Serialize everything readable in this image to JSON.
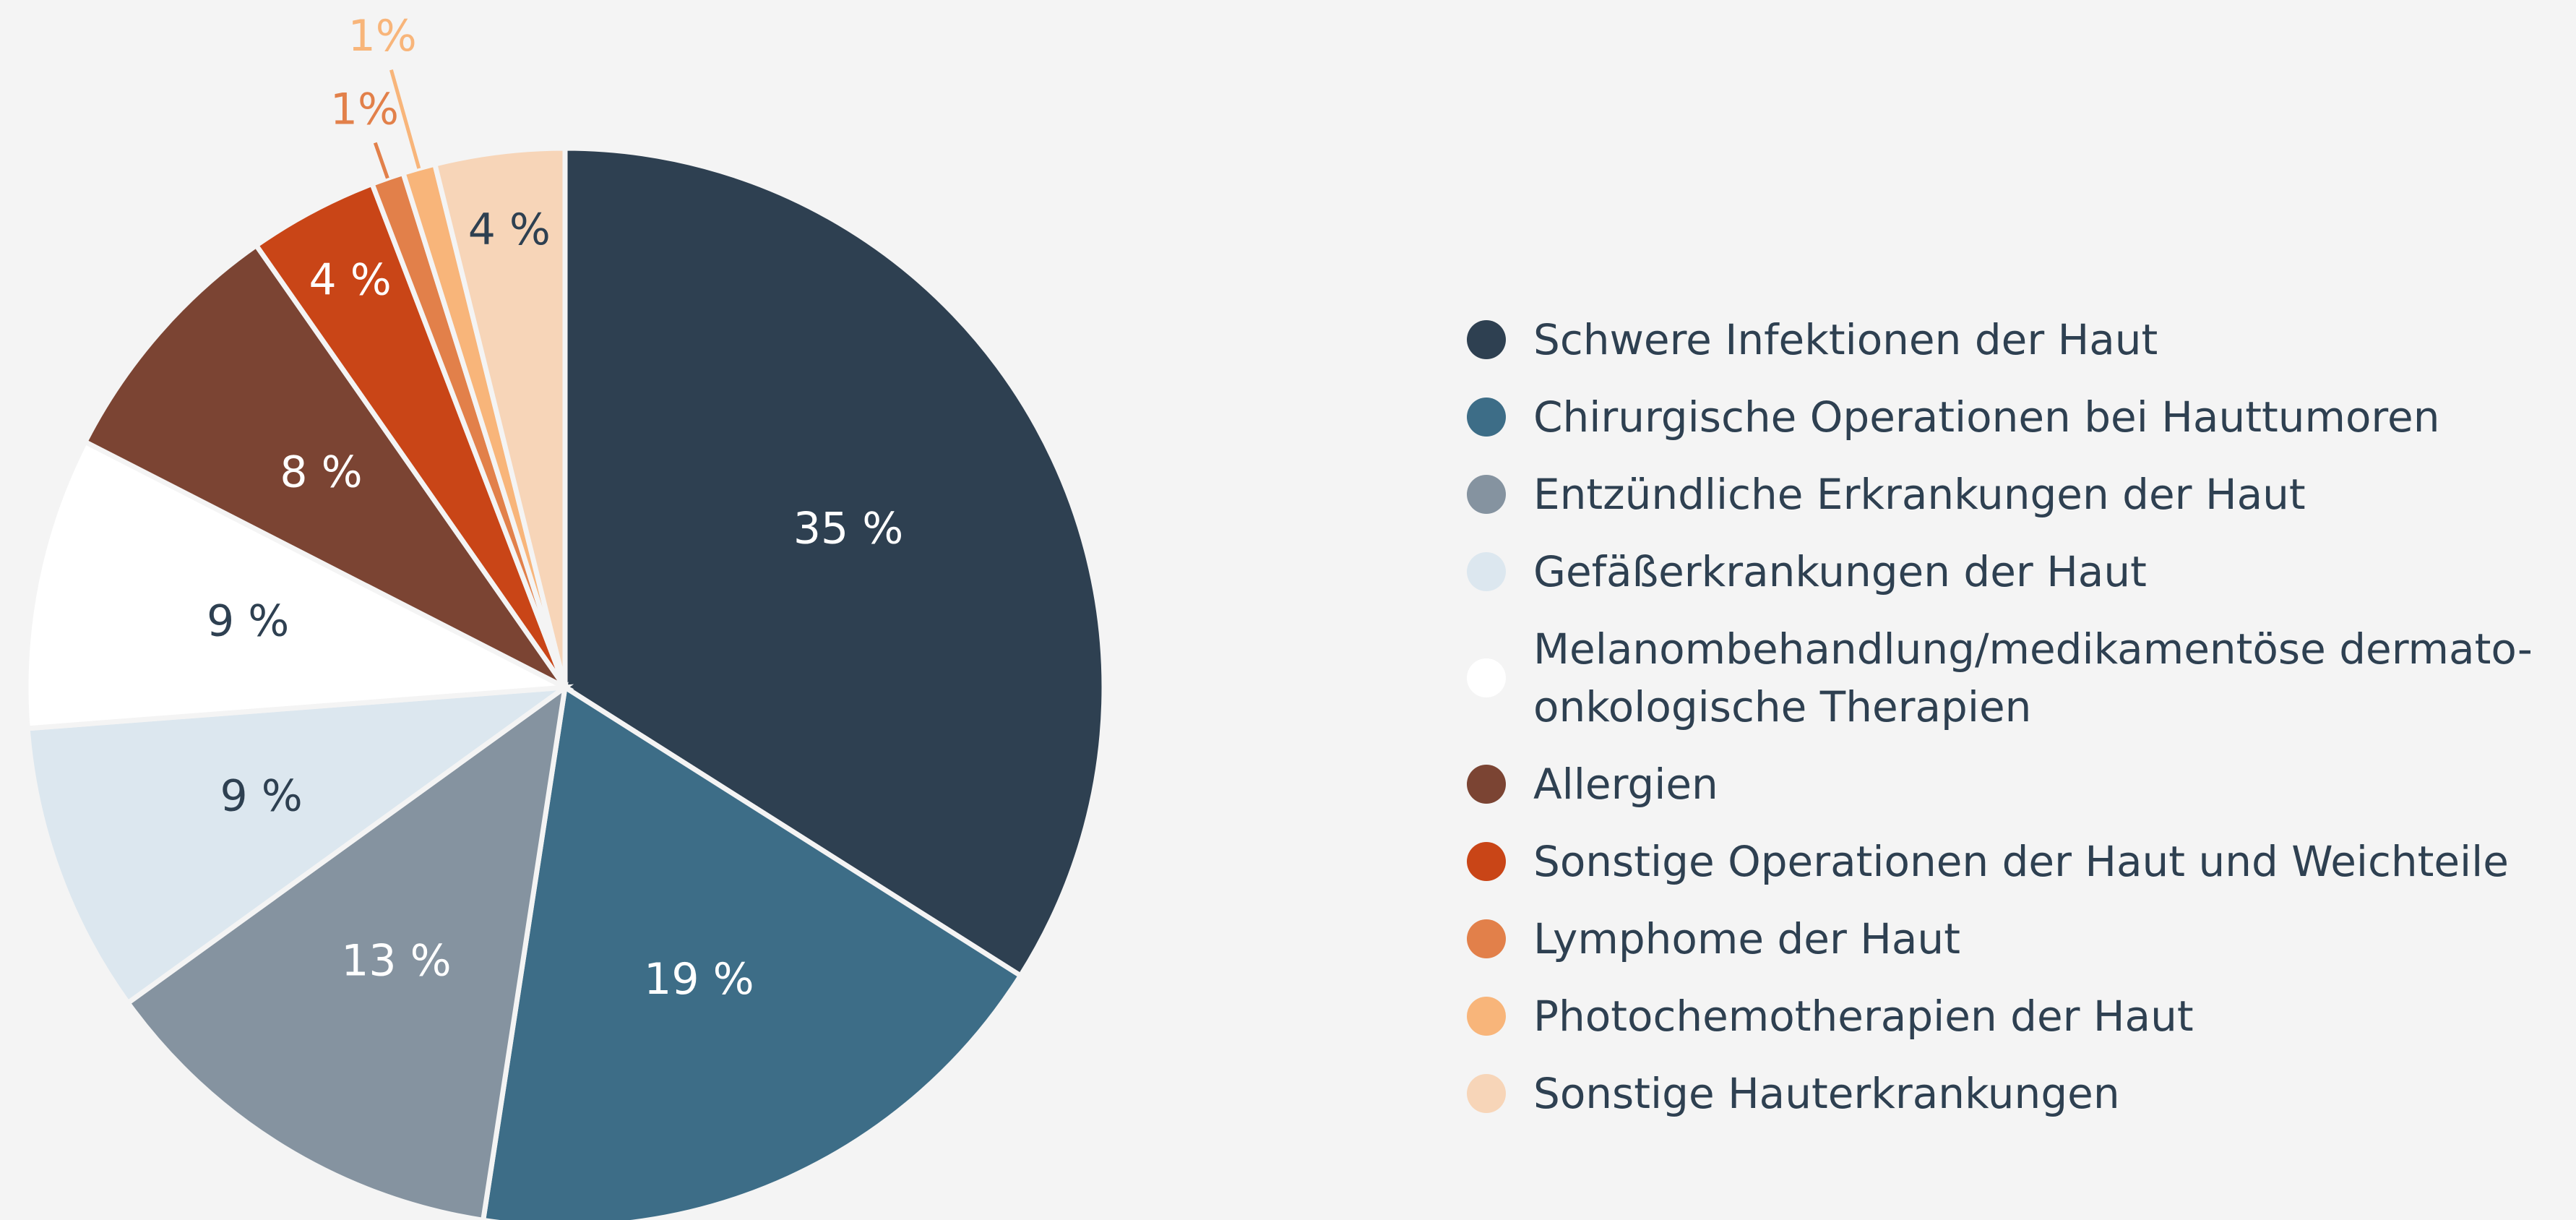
{
  "chart_data": {
    "type": "pie",
    "categories": [
      "Schwere Infektionen der Haut",
      "Chirurgische Operationen bei Hauttumoren",
      "Entzündliche Erkrankungen der Haut",
      "Gefäßerkrankungen der Haut",
      "Melanombehandlung/medikamentöse dermato-onkologische Therapien",
      "Allergien",
      "Sonstige Operationen der Haut und Weichteile",
      "Lymphome der Haut",
      "Photochemotherapien der Haut",
      "Sonstige Hauterkrankungen"
    ],
    "values": [
      35,
      19,
      13,
      9,
      9,
      8,
      4,
      1,
      1,
      4
    ],
    "value_labels": [
      "35 %",
      "19 %",
      "13 %",
      "9 %",
      "9 %",
      "8 %",
      "4 %",
      "1%",
      "1%",
      "4 %"
    ],
    "colors": [
      "#2e4051",
      "#3d6d87",
      "#8593a0",
      "#dce7ef",
      "#ffffff",
      "#7b4433",
      "#c94517",
      "#e2804a",
      "#f8b57a",
      "#f7d5b8"
    ],
    "legend": "right"
  }
}
